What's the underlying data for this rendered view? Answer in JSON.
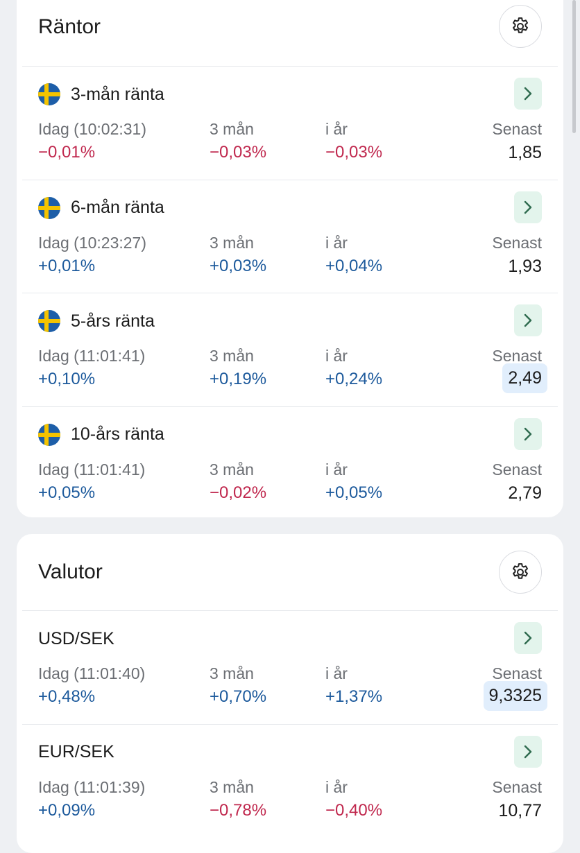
{
  "rantor": {
    "title": "Räntor",
    "rows": [
      {
        "name": "3-mån ränta",
        "idag_label": "Idag (10:02:31)",
        "idag": "−0,01%",
        "tre_man_label": "3 mån",
        "tre_man": "−0,03%",
        "i_ar_label": "i år",
        "i_ar": "−0,03%",
        "senast_label": "Senast",
        "senast": "1,85"
      },
      {
        "name": "6-mån ränta",
        "idag_label": "Idag (10:23:27)",
        "idag": "+0,01%",
        "tre_man_label": "3 mån",
        "tre_man": "+0,03%",
        "i_ar_label": "i år",
        "i_ar": "+0,04%",
        "senast_label": "Senast",
        "senast": "1,93"
      },
      {
        "name": "5-års ränta",
        "idag_label": "Idag (11:01:41)",
        "idag": "+0,10%",
        "tre_man_label": "3 mån",
        "tre_man": "+0,19%",
        "i_ar_label": "i år",
        "i_ar": "+0,24%",
        "senast_label": "Senast",
        "senast": "2,49"
      },
      {
        "name": "10-års ränta",
        "idag_label": "Idag (11:01:41)",
        "idag": "+0,05%",
        "tre_man_label": "3 mån",
        "tre_man": "−0,02%",
        "i_ar_label": "i år",
        "i_ar": "+0,05%",
        "senast_label": "Senast",
        "senast": "2,79"
      }
    ]
  },
  "valutor": {
    "title": "Valutor",
    "rows": [
      {
        "name": "USD/SEK",
        "idag_label": "Idag (11:01:40)",
        "idag": "+0,48%",
        "tre_man_label": "3 mån",
        "tre_man": "+0,70%",
        "i_ar_label": "i år",
        "i_ar": "+1,37%",
        "senast_label": "Senast",
        "senast": "9,3325"
      },
      {
        "name": "EUR/SEK",
        "idag_label": "Idag (11:01:39)",
        "idag": "+0,09%",
        "tre_man_label": "3 mån",
        "tre_man": "−0,78%",
        "i_ar_label": "i år",
        "i_ar": "−0,40%",
        "senast_label": "Senast",
        "senast": "10,77"
      }
    ]
  },
  "icons": {
    "settings": "gear-icon",
    "open": "chevron-right-icon",
    "flag": "sweden-flag-icon"
  },
  "colors": {
    "negative": "#c0284e",
    "positive": "#1d5a9c",
    "highlight": "#e1eefc",
    "arrow_bg": "#e3f4ec",
    "arrow_fg": "#2f6b4f"
  }
}
